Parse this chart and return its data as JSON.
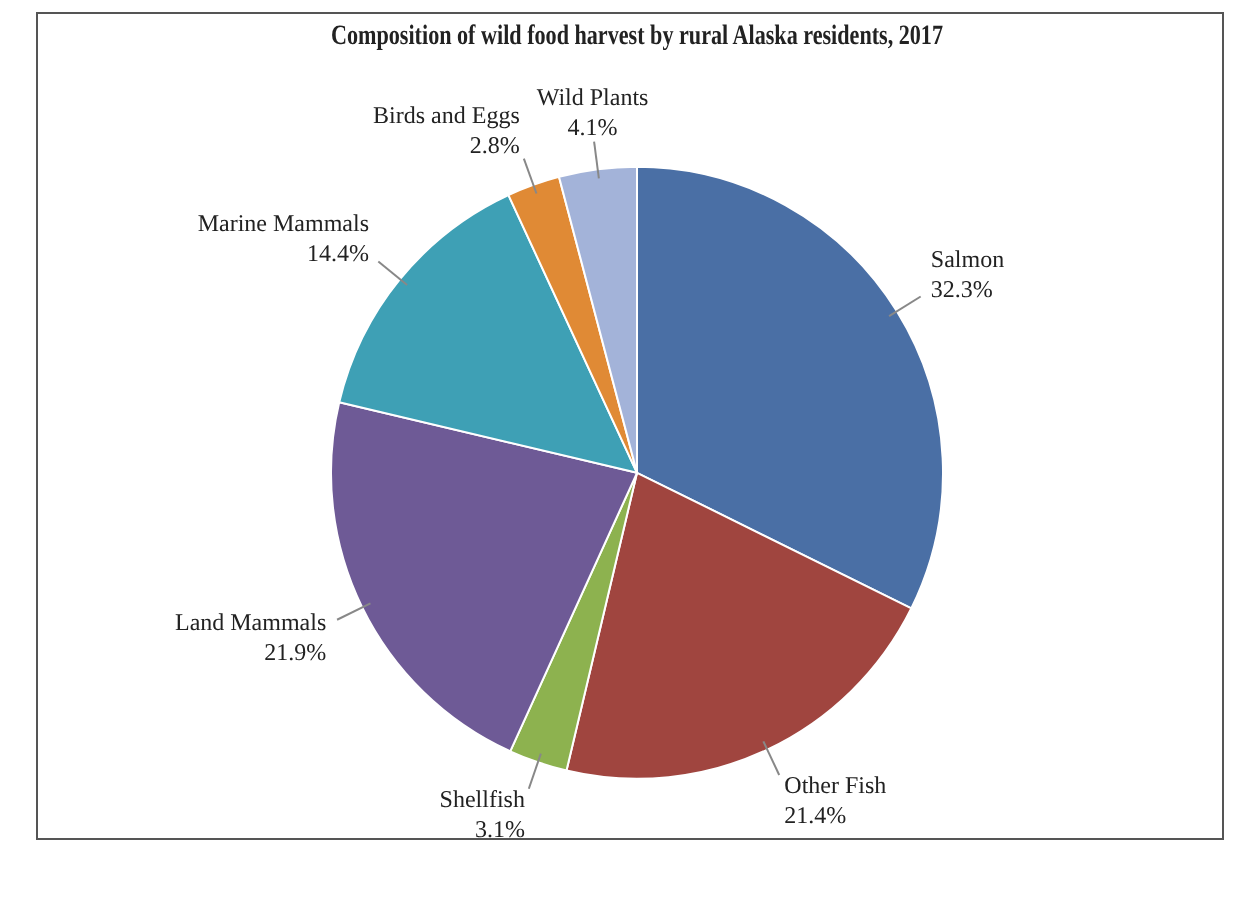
{
  "chart_data": {
    "type": "pie",
    "title": "Composition of wild food harvest by rural Alaska residents, 2017",
    "categories": [
      "Salmon",
      "Other Fish",
      "Shellfish",
      "Land Mammals",
      "Marine Mammals",
      "Birds and Eggs",
      "Wild Plants"
    ],
    "values": [
      32.3,
      21.4,
      3.1,
      21.9,
      14.4,
      2.8,
      4.1
    ],
    "value_labels": [
      "32.3%",
      "21.4%",
      "3.1%",
      "21.9%",
      "14.4%",
      "2.8%",
      "4.1%"
    ],
    "colors": [
      "#4a6fa5",
      "#a0453f",
      "#8db24f",
      "#6e5a96",
      "#3ea0b5",
      "#e08a35",
      "#a3b3d9"
    ],
    "legend": false
  }
}
